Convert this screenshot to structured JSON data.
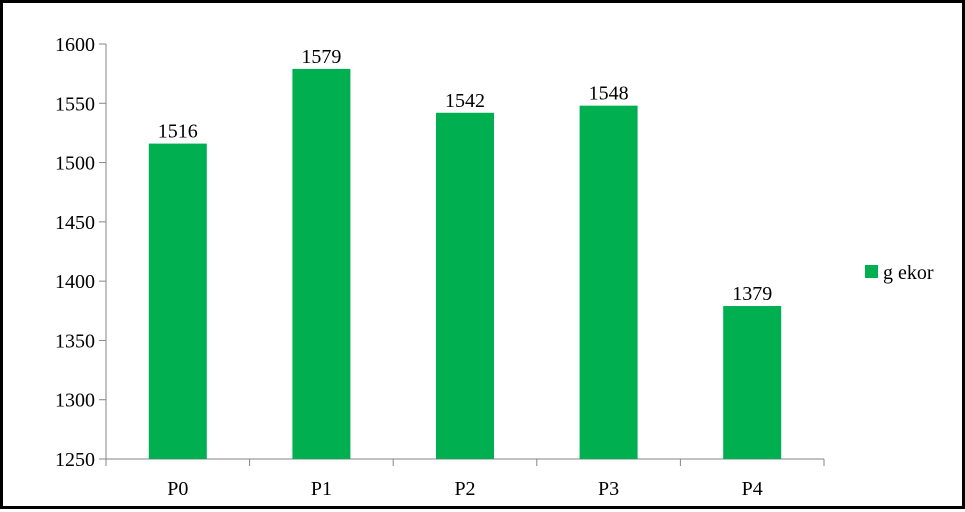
{
  "chart_data": {
    "type": "bar",
    "title": "",
    "xlabel": "",
    "ylabel": "",
    "categories": [
      "P0",
      "P1",
      "P2",
      "P3",
      "P4"
    ],
    "series": [
      {
        "name": "g ekor",
        "values": [
          1516,
          1579,
          1542,
          1548,
          1379
        ]
      }
    ],
    "data_labels": [
      "1516",
      "1579",
      "1542",
      "1548",
      "1379"
    ],
    "ylim": [
      1250,
      1600
    ],
    "yticks": [
      1250,
      1300,
      1350,
      1400,
      1450,
      1500,
      1550,
      1600
    ],
    "ytick_labels": [
      "1250",
      "1300",
      "1350",
      "1400",
      "1450",
      "1500",
      "1550",
      "1600"
    ],
    "grid": false,
    "legend_position": "right",
    "bar_color": "#00b050",
    "axis_color": "#868686",
    "border_color": "#000000"
  }
}
